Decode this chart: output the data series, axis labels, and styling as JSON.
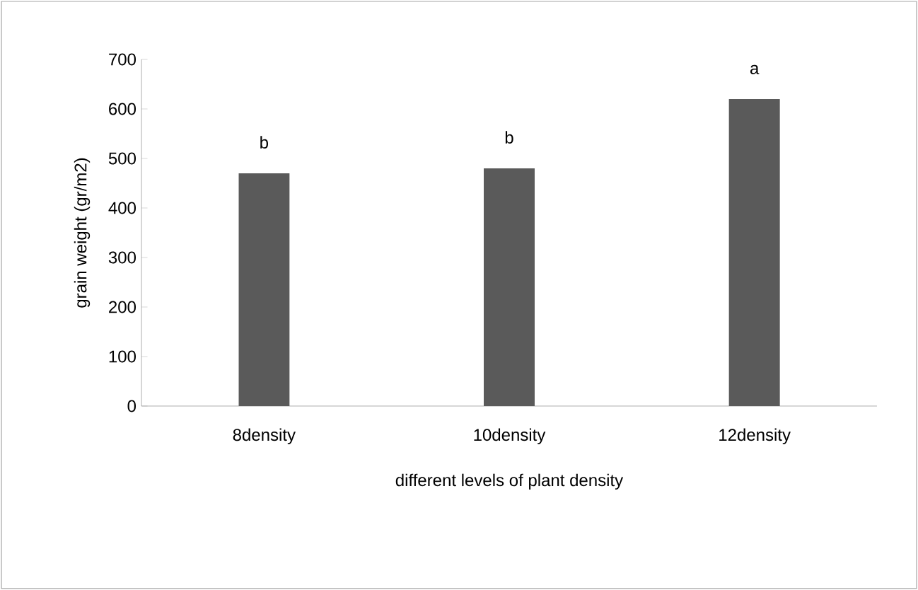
{
  "chart_data": {
    "type": "bar",
    "xlabel": "different levels of plant density",
    "ylabel": "grain weight (gr/m2)",
    "categories": [
      "8density",
      "10density",
      "12density"
    ],
    "values": [
      470,
      480,
      620
    ],
    "color": "#5a5a5a",
    "ylim": [
      0,
      700
    ],
    "yticks": [
      0,
      100,
      200,
      300,
      400,
      500,
      600,
      700
    ],
    "grid": false,
    "annotations": [
      {
        "text": "b",
        "x": "8density",
        "y": 470
      },
      {
        "text": "b",
        "x": "10density",
        "y": 480
      },
      {
        "text": "a",
        "x": "12density",
        "y": 620
      }
    ]
  }
}
